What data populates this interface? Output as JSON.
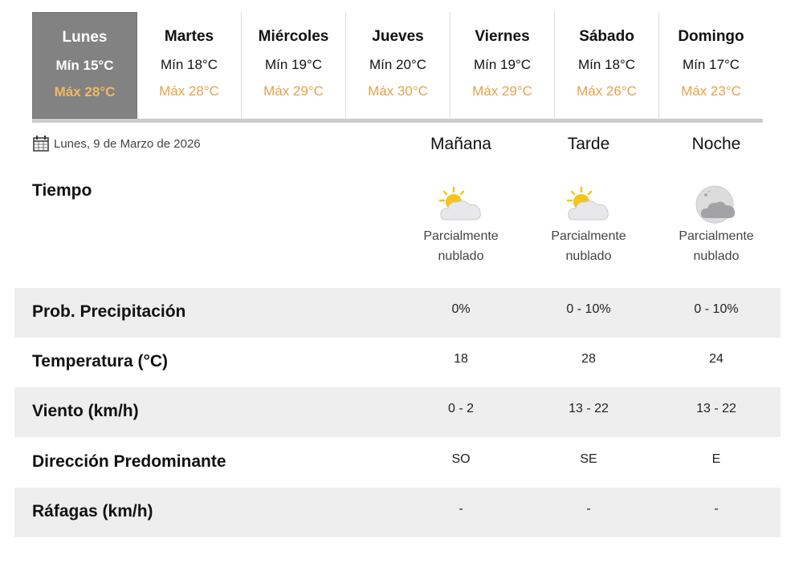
{
  "days": [
    {
      "name": "Lunes",
      "min": "Mín 15°C",
      "max": "Máx 28°C",
      "active": true
    },
    {
      "name": "Martes",
      "min": "Mín 18°C",
      "max": "Máx 28°C"
    },
    {
      "name": "Miércoles",
      "min": "Mín 19°C",
      "max": "Máx 29°C"
    },
    {
      "name": "Jueves",
      "min": "Mín 20°C",
      "max": "Máx 30°C"
    },
    {
      "name": "Viernes",
      "min": "Mín 19°C",
      "max": "Máx 29°C"
    },
    {
      "name": "Sábado",
      "min": "Mín 18°C",
      "max": "Máx 26°C"
    },
    {
      "name": "Domingo",
      "min": "Mín 17°C",
      "max": "Máx 23°C"
    }
  ],
  "date": "Lunes, 9 de Marzo de 2026",
  "columns": [
    "Mañana",
    "Tarde",
    "Noche"
  ],
  "tiempo_label": "Tiempo",
  "weather": [
    {
      "icon": "partly-cloudy-day-icon",
      "l1": "Parcialmente",
      "l2": "nublado"
    },
    {
      "icon": "partly-cloudy-day-icon",
      "l1": "Parcialmente",
      "l2": "nublado"
    },
    {
      "icon": "partly-cloudy-night-icon",
      "l1": "Parcialmente",
      "l2": "nublado"
    }
  ],
  "rows": [
    {
      "label": "Prob. Precipitación",
      "values": [
        "0%",
        "0 - 10%",
        "0 - 10%"
      ]
    },
    {
      "label": "Temperatura (°C)",
      "values": [
        "18",
        "28",
        "24"
      ]
    },
    {
      "label": "Viento (km/h)",
      "values": [
        "0 - 2",
        "13 - 22",
        "13 - 22"
      ]
    },
    {
      "label": "Dirección Predominante",
      "values": [
        "SO",
        "SE",
        "E"
      ]
    },
    {
      "label": "Ráfagas (km/h)",
      "values": [
        "-",
        "-",
        "-"
      ]
    }
  ],
  "colors": {
    "max_temp": "#e9a04a",
    "active_tab": "#828282",
    "row_shade": "#eeeeee"
  }
}
